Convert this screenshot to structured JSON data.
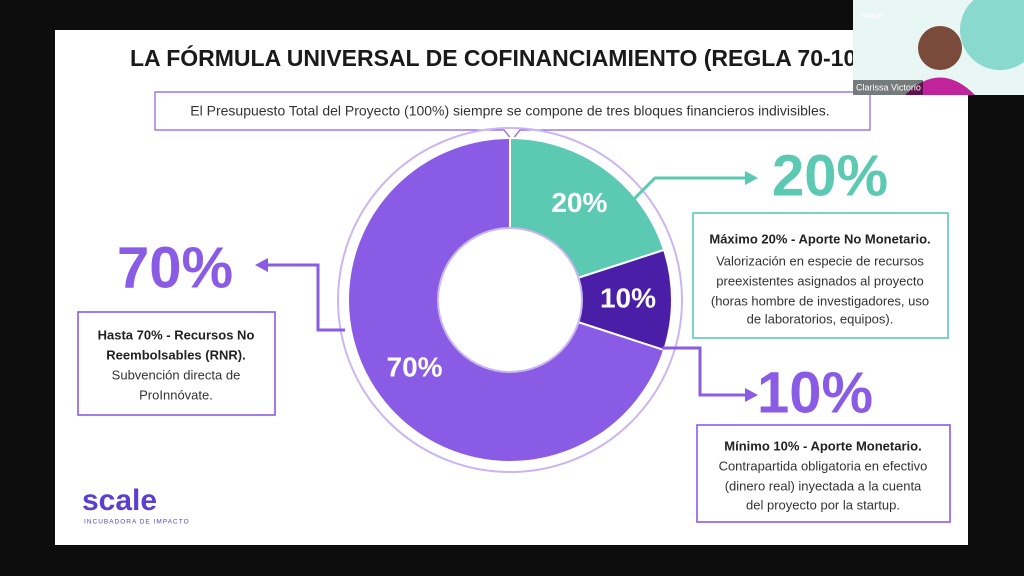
{
  "slide": {
    "title": "LA FÓRMULA UNIVERSAL DE COFINANCIAMIENTO (REGLA 70-10",
    "subtitle": "El Presupuesto Total del Proyecto (100%) siempre se compone de tres bloques financieros indivisibles.",
    "logo": "scale",
    "logo_tagline": "INCUBADORA DE IMPACTO"
  },
  "chart_data": {
    "type": "donut",
    "categories": [
      "Aporte No Monetario",
      "Aporte Monetario",
      "Recursos No Reembolsables"
    ],
    "values": [
      20,
      10,
      70
    ],
    "value_labels": [
      "20%",
      "10%",
      "70%"
    ],
    "colors": [
      "#5cc9b3",
      "#4a1ea6",
      "#8a5ce6"
    ]
  },
  "callouts": [
    {
      "big": "20%",
      "heading": "Máximo 20% - Aporte No Monetario.",
      "body": [
        "Valorización en especie de recursos",
        "preexistentes asignados al proyecto",
        "(horas hombre de investigadores, uso",
        "de laboratorios, equipos)."
      ]
    },
    {
      "big": "10%",
      "heading": "Mínimo 10% - Aporte Monetario.",
      "body": [
        "Contrapartida obligatoria en efectivo",
        "(dinero real) inyectada a la cuenta",
        "del proyecto por la startup."
      ]
    },
    {
      "big": "70%",
      "heading": [
        "Hasta 70% - Recursos No",
        "Reembolsables (RNR)."
      ],
      "body": [
        "Subvención directa de",
        "ProInnóvate."
      ]
    }
  ],
  "participant": {
    "name": "Clarissa Victorio",
    "logo": "scale"
  }
}
